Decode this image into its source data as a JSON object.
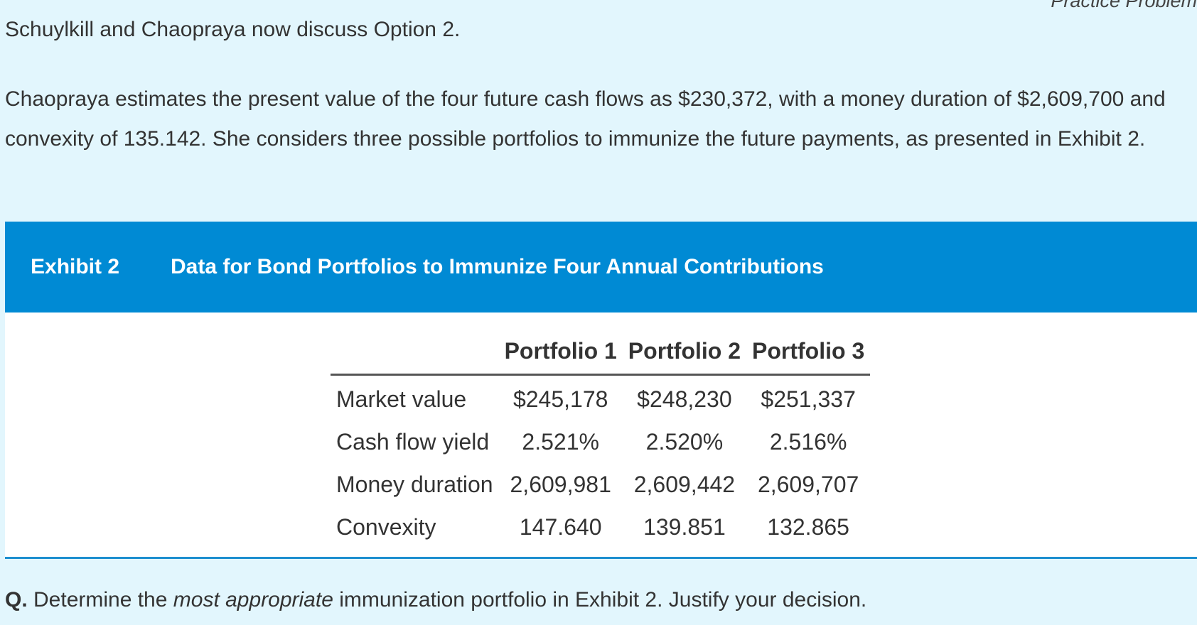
{
  "header": {
    "cutoff_title": "Practice Problem"
  },
  "intro": {
    "text": "Schuylkill and Chaopraya now discuss Option 2."
  },
  "paragraph": {
    "text": "Chaopraya estimates the present value of the four future cash flows as $230,372, with a money duration of $2,609,700 and convexity of 135.142. She considers three possible portfolios to immunize the future payments, as presented in Exhibit 2."
  },
  "exhibit": {
    "label": "Exhibit 2",
    "title": "Data for Bond Portfolios to Immunize Four Annual Contributions",
    "columns": [
      "",
      "Portfolio 1",
      "Portfolio 2",
      "Portfolio 3"
    ],
    "rows": [
      {
        "label": "Market value",
        "values": [
          "$245,178",
          "$248,230",
          "$251,337"
        ]
      },
      {
        "label": "Cash flow yield",
        "values": [
          "2.521%",
          "2.520%",
          "2.516%"
        ]
      },
      {
        "label": "Money duration",
        "values": [
          "2,609,981",
          "2,609,442",
          "2,609,707"
        ]
      },
      {
        "label": "Convexity",
        "values": [
          "147.640",
          "139.851",
          "132.865"
        ]
      }
    ]
  },
  "question": {
    "prefix": "Q.",
    "before": " Determine the ",
    "emphasis": "most appropriate",
    "after": " immunization portfolio in Exhibit 2. Justify your decision."
  }
}
